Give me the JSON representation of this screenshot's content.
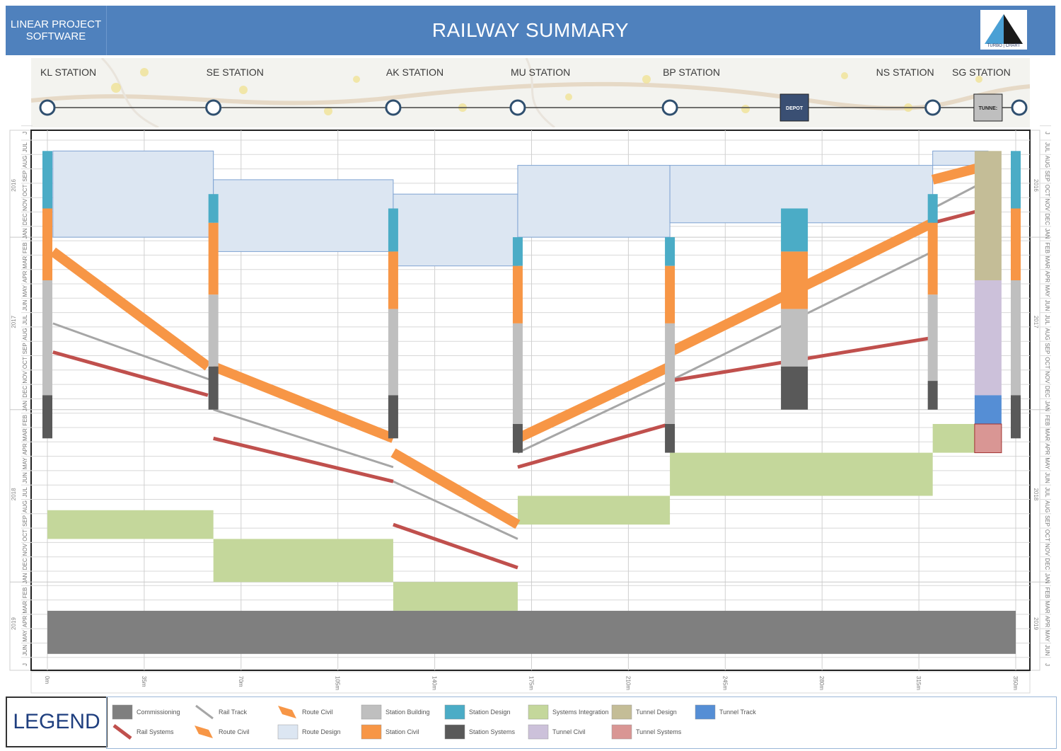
{
  "header": {
    "brand": "LINEAR PROJECT SOFTWARE",
    "title": "RAILWAY SUMMARY",
    "logo_text": "TURBO | CHART"
  },
  "stations": [
    {
      "label": "KL STATION",
      "chainage": 0
    },
    {
      "label": "SE STATION",
      "chainage": 60
    },
    {
      "label": "AK STATION",
      "chainage": 125
    },
    {
      "label": "MU STATION",
      "chainage": 170
    },
    {
      "label": "BP STATION",
      "chainage": 225
    },
    {
      "label": "NS STATION",
      "chainage": 320
    },
    {
      "label": "SG STATION",
      "chainage": 350
    }
  ],
  "site_markers": [
    {
      "label": "DEPOT",
      "chainage": 270
    },
    {
      "label": "TUNNE:",
      "chainage": 340
    }
  ],
  "chart_data": {
    "type": "linear-schedule",
    "x_unit": "m",
    "x_ticks": [
      "0m",
      "35m",
      "70m",
      "105m",
      "140m",
      "175m",
      "210m",
      "245m",
      "280m",
      "315m",
      "350m"
    ],
    "xlim": [
      0,
      350
    ],
    "time_start": "2016-06",
    "time_end": "2019-06",
    "year_labels": [
      "2016",
      "2017",
      "2018",
      "2019"
    ],
    "month_labels": [
      "J",
      "JUL",
      "AUG",
      "SEP",
      "OCT",
      "NOV",
      "DEC",
      "JAN",
      "FEB",
      "MAR",
      "APR",
      "MAY",
      "JUN",
      "JUL",
      "AUG",
      "SEP",
      "OCT",
      "NOV",
      "DEC",
      "JAN",
      "FEB",
      "MAR",
      "APR",
      "MAY",
      "JUN",
      "JUL",
      "AUG",
      "SEP",
      "OCT",
      "NOV",
      "DEC",
      "JAN",
      "FEB",
      "MAR",
      "APR",
      "MAY",
      "JUN",
      "J"
    ],
    "colors": {
      "commissioning": "#7f7f7f",
      "rail_track": "#a6a6a6",
      "route_civil": "#f79646",
      "station_building": "#bfbfbf",
      "station_design": "#4bacc6",
      "systems_integration": "#c4d79b",
      "tunnel_design": "#c4bd97",
      "tunnel_track": "#558ed5",
      "rail_systems": "#c0504d",
      "route_design": "#dce6f2",
      "station_civil": "#f79646",
      "station_systems": "#595959",
      "tunnel_civil": "#ccc1da",
      "tunnel_systems": "#d99694"
    },
    "route_design_blocks": [
      {
        "x0": 2,
        "x1": 60,
        "t0": "2016-07",
        "t1": "2017-01"
      },
      {
        "x0": 60,
        "x1": 125,
        "t0": "2016-09",
        "t1": "2017-02"
      },
      {
        "x0": 125,
        "x1": 170,
        "t0": "2016-10",
        "t1": "2017-03"
      },
      {
        "x0": 170,
        "x1": 225,
        "t0": "2016-08",
        "t1": "2017-01"
      },
      {
        "x0": 225,
        "x1": 320,
        "t0": "2016-08",
        "t1": "2016-12"
      },
      {
        "x0": 320,
        "x1": 340,
        "t0": "2016-07",
        "t1": "2016-08"
      }
    ],
    "station_bars": [
      {
        "x": 0,
        "design": [
          "2016-07",
          "2016-11"
        ],
        "civil": [
          "2016-11",
          "2017-04"
        ],
        "building": [
          "2017-04",
          "2017-12"
        ],
        "systems": [
          "2017-12",
          "2018-03"
        ]
      },
      {
        "x": 60,
        "design": [
          "2016-10",
          "2016-12"
        ],
        "civil": [
          "2016-12",
          "2017-05"
        ],
        "building": [
          "2017-05",
          "2017-10"
        ],
        "systems": [
          "2017-10",
          "2018-01"
        ]
      },
      {
        "x": 125,
        "design": [
          "2016-11",
          "2017-02"
        ],
        "civil": [
          "2017-02",
          "2017-06"
        ],
        "building": [
          "2017-06",
          "2017-12"
        ],
        "systems": [
          "2017-12",
          "2018-03"
        ]
      },
      {
        "x": 170,
        "design": [
          "2017-01",
          "2017-03"
        ],
        "civil": [
          "2017-03",
          "2017-07"
        ],
        "building": [
          "2017-07",
          "2018-02"
        ],
        "systems": [
          "2018-02",
          "2018-04"
        ]
      },
      {
        "x": 225,
        "design": [
          "2017-01",
          "2017-03"
        ],
        "civil": [
          "2017-03",
          "2017-07"
        ],
        "building": [
          "2017-07",
          "2018-02"
        ],
        "systems": [
          "2018-02",
          "2018-04"
        ]
      },
      {
        "x": 320,
        "design": [
          "2016-10",
          "2016-12"
        ],
        "civil": [
          "2016-12",
          "2017-05"
        ],
        "building": [
          "2017-05",
          "2017-11"
        ],
        "systems": [
          "2017-11",
          "2018-01"
        ]
      },
      {
        "x": 350,
        "design": [
          "2016-07",
          "2016-11"
        ],
        "civil": [
          "2016-11",
          "2017-04"
        ],
        "building": [
          "2017-04",
          "2017-12"
        ],
        "systems": [
          "2017-12",
          "2018-03"
        ]
      }
    ],
    "depot_bar": {
      "x": 270,
      "design": [
        "2016-11",
        "2017-02"
      ],
      "civil": [
        "2017-02",
        "2017-06"
      ],
      "building": [
        "2017-06",
        "2017-10"
      ],
      "systems": [
        "2017-10",
        "2018-01"
      ]
    },
    "tunnel_bar": {
      "x": 340,
      "design": [
        "2016-07",
        "2017-04"
      ],
      "civil": [
        "2017-04",
        "2017-12"
      ],
      "track": [
        "2017-12",
        "2018-02"
      ],
      "systems": [
        "2018-02",
        "2018-04"
      ]
    },
    "route_civil_lines": [
      {
        "x0": 2,
        "t0": "2017-02",
        "x1": 58,
        "t1": "2017-10"
      },
      {
        "x0": 60,
        "t0": "2017-10",
        "x1": 125,
        "t1": "2018-03"
      },
      {
        "x0": 125,
        "t0": "2018-04",
        "x1": 170,
        "t1": "2018-09"
      },
      {
        "x0": 170,
        "t0": "2018-03",
        "x1": 225,
        "t1": "2017-10"
      },
      {
        "x0": 225,
        "t0": "2017-09",
        "x1": 320,
        "t1": "2016-12"
      },
      {
        "x0": 320,
        "t0": "2016-09",
        "x1": 340,
        "t1": "2016-08"
      }
    ],
    "rail_track_lines": [
      {
        "x0": 2,
        "t0": "2017-07",
        "x1": 60,
        "t1": "2017-11"
      },
      {
        "x0": 60,
        "t0": "2018-01",
        "x1": 125,
        "t1": "2018-05"
      },
      {
        "x0": 125,
        "t0": "2018-06",
        "x1": 170,
        "t1": "2018-10"
      },
      {
        "x0": 170,
        "t0": "2018-04",
        "x1": 225,
        "t1": "2017-11"
      },
      {
        "x0": 225,
        "t0": "2017-11",
        "x1": 320,
        "t1": "2017-02"
      },
      {
        "x0": 320,
        "t0": "2016-11",
        "x1": 340,
        "t1": "2016-09"
      }
    ],
    "rail_systems_lines": [
      {
        "x0": 2,
        "t0": "2017-09",
        "x1": 58,
        "t1": "2017-12"
      },
      {
        "x0": 60,
        "t0": "2018-03",
        "x1": 125,
        "t1": "2018-06"
      },
      {
        "x0": 125,
        "t0": "2018-09",
        "x1": 170,
        "t1": "2018-12"
      },
      {
        "x0": 170,
        "t0": "2018-05",
        "x1": 225,
        "t1": "2018-02"
      },
      {
        "x0": 225,
        "t0": "2017-11",
        "x1": 320,
        "t1": "2017-08"
      },
      {
        "x0": 320,
        "t0": "2016-12",
        "x1": 340,
        "t1": "2016-11"
      }
    ],
    "systems_integration_blocks": [
      {
        "x0": 0,
        "x1": 60,
        "t0": "2018-08",
        "t1": "2018-10"
      },
      {
        "x0": 60,
        "x1": 125,
        "t0": "2018-10",
        "t1": "2019-01"
      },
      {
        "x0": 125,
        "x1": 170,
        "t0": "2019-01",
        "t1": "2019-03"
      },
      {
        "x0": 170,
        "x1": 225,
        "t0": "2018-07",
        "t1": "2018-09"
      },
      {
        "x0": 225,
        "x1": 320,
        "t0": "2018-04",
        "t1": "2018-07"
      },
      {
        "x0": 320,
        "x1": 340,
        "t0": "2018-02",
        "t1": "2018-04"
      }
    ],
    "commissioning_block": {
      "x0": 0,
      "x1": 350,
      "t0": "2019-03",
      "t1": "2019-06"
    }
  },
  "legend": {
    "title": "LEGEND",
    "items": [
      {
        "label": "Commissioning",
        "kind": "box",
        "color": "#7f7f7f"
      },
      {
        "label": "Rail Track",
        "kind": "line",
        "color": "#a6a6a6"
      },
      {
        "label": "Route Civil",
        "kind": "slant",
        "color": "#f79646"
      },
      {
        "label": "Station Building",
        "kind": "box",
        "color": "#bfbfbf"
      },
      {
        "label": "Station Design",
        "kind": "box",
        "color": "#4bacc6"
      },
      {
        "label": "Systems Integration",
        "kind": "box",
        "color": "#c4d79b"
      },
      {
        "label": "Tunnel Design",
        "kind": "box",
        "color": "#c4bd97"
      },
      {
        "label": "Tunnel Track",
        "kind": "box",
        "color": "#558ed5"
      },
      {
        "label": "Rail Systems",
        "kind": "line",
        "color": "#c0504d"
      },
      {
        "label": "Route Civil",
        "kind": "slant",
        "color": "#f79646"
      },
      {
        "label": "Route Design",
        "kind": "box",
        "color": "#dce6f2"
      },
      {
        "label": "Station Civil",
        "kind": "box",
        "color": "#f79646"
      },
      {
        "label": "Station Systems",
        "kind": "box",
        "color": "#595959"
      },
      {
        "label": "Tunnel Civil",
        "kind": "box",
        "color": "#ccc1da"
      },
      {
        "label": "Tunnel Systems",
        "kind": "box",
        "color": "#d99694"
      }
    ]
  }
}
